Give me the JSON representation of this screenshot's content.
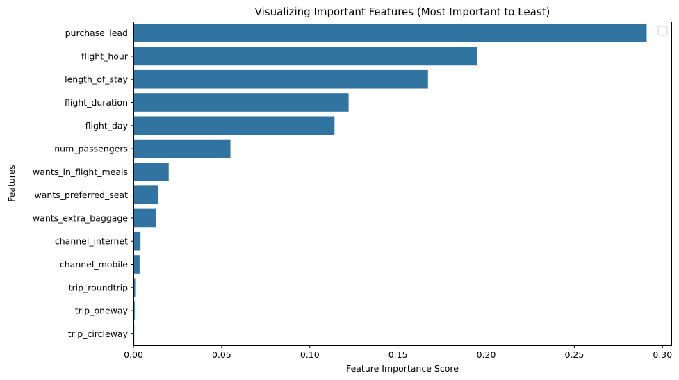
{
  "chart_data": {
    "type": "bar",
    "orientation": "horizontal",
    "title": "Visualizing Important Features (Most Important to Least)",
    "xlabel": "Feature Importance Score",
    "ylabel": "Features",
    "categories": [
      "purchase_lead",
      "flight_hour",
      "length_of_stay",
      "flight_duration",
      "flight_day",
      "num_passengers",
      "wants_in_flight_meals",
      "wants_preferred_seat",
      "wants_extra_baggage",
      "channel_internet",
      "channel_mobile",
      "trip_roundtrip",
      "trip_oneway",
      "trip_circleway"
    ],
    "values": [
      0.291,
      0.195,
      0.167,
      0.122,
      0.114,
      0.055,
      0.02,
      0.014,
      0.013,
      0.004,
      0.0035,
      0.001,
      0.0007,
      0.0005
    ],
    "xlim": [
      0,
      0.305
    ],
    "xticks": [
      "0.00",
      "0.05",
      "0.10",
      "0.15",
      "0.20",
      "0.25",
      "0.30"
    ],
    "xtick_values": [
      0,
      0.05,
      0.1,
      0.15,
      0.2,
      0.25,
      0.3
    ],
    "bar_color": "#3274a1",
    "grid": false,
    "legend": "top-right"
  }
}
